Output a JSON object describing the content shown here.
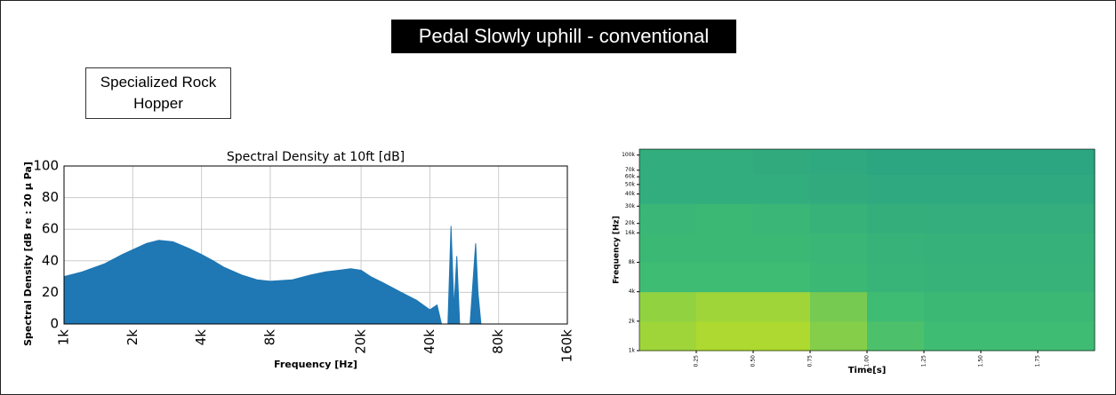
{
  "header": {
    "title": "Pedal Slowly uphill - conventional",
    "note": "Specialized Rock Hopper"
  },
  "chart_data": [
    {
      "type": "area",
      "title": "Spectral Density at 10ft [dB]",
      "x_label": "Frequency [Hz]",
      "y_label": "Spectral Density [dB re : 20 μ Pa]",
      "xscale": "log",
      "grid": true,
      "color": "#1f77b4",
      "xlim": [
        1000,
        160000
      ],
      "ylim": [
        0,
        100
      ],
      "xticks": [
        {
          "value": 1000,
          "label": "1k"
        },
        {
          "value": 2000,
          "label": "2k"
        },
        {
          "value": 4000,
          "label": "4k"
        },
        {
          "value": 8000,
          "label": "8k"
        },
        {
          "value": 20000,
          "label": "20k"
        },
        {
          "value": 40000,
          "label": "40k"
        },
        {
          "value": 80000,
          "label": "80k"
        },
        {
          "value": 160000,
          "label": "160k"
        }
      ],
      "yticks": [
        0,
        20,
        40,
        60,
        80,
        100
      ],
      "x": [
        1000,
        1200,
        1500,
        1800,
        2000,
        2300,
        2600,
        3000,
        3500,
        4000,
        4500,
        5000,
        6000,
        7000,
        8000,
        10000,
        12000,
        14000,
        16000,
        18000,
        20000,
        22000,
        25000,
        30000,
        35000,
        40000,
        43000,
        45000,
        48000,
        49500,
        51000,
        52500,
        54000,
        60000,
        62000,
        63500,
        65000,
        67000,
        160000
      ],
      "values": [
        30,
        33,
        38,
        44,
        47,
        51,
        53,
        52,
        48,
        44,
        40,
        36,
        31,
        28,
        27,
        28,
        31,
        33,
        34,
        35,
        34,
        30,
        26,
        20,
        15,
        9,
        12,
        0,
        0,
        62,
        10,
        43,
        0,
        0,
        30,
        51,
        20,
        0,
        0
      ]
    },
    {
      "type": "heatmap",
      "x_label": "Time[s]",
      "y_label": "Frequency [Hz]",
      "yscale": "log",
      "xlim": [
        0,
        2
      ],
      "ylim": [
        1000,
        115000
      ],
      "xticks": [
        0.25,
        {
          "value": 0.5,
          "label": "0.50"
        },
        0.75,
        {
          "value": 1,
          "label": "1.00"
        },
        1.25,
        {
          "value": 1.5,
          "label": "1.50"
        },
        1.75
      ],
      "yticks": [
        {
          "value": 1000,
          "label": "1k"
        },
        {
          "value": 2000,
          "label": "2k"
        },
        {
          "value": 4000,
          "label": "4k"
        },
        {
          "value": 8000,
          "label": "8k"
        },
        {
          "value": 16000,
          "label": "16k"
        },
        {
          "value": 20000,
          "label": "20k"
        },
        {
          "value": 30000,
          "label": "30k"
        },
        {
          "value": 40000,
          "label": "40k"
        },
        {
          "value": 50000,
          "label": "50k"
        },
        {
          "value": 60000,
          "label": "60k"
        },
        {
          "value": 70000,
          "label": "70k"
        },
        {
          "value": 100000,
          "label": "100k"
        }
      ],
      "x_bins": [
        0,
        0.25,
        0.5,
        0.75,
        1,
        1.25,
        1.5,
        1.75,
        2
      ],
      "y_bins": [
        1000,
        2000,
        4000,
        8000,
        16000,
        32000,
        64000,
        115000
      ],
      "z": [
        [
          0.85,
          0.9,
          0.9,
          0.75,
          0.55,
          0.5,
          0.5,
          0.5
        ],
        [
          0.8,
          0.85,
          0.85,
          0.7,
          0.5,
          0.45,
          0.45,
          0.45
        ],
        [
          0.5,
          0.5,
          0.5,
          0.45,
          0.4,
          0.38,
          0.38,
          0.38
        ],
        [
          0.45,
          0.45,
          0.45,
          0.42,
          0.38,
          0.36,
          0.36,
          0.36
        ],
        [
          0.42,
          0.45,
          0.42,
          0.38,
          0.33,
          0.32,
          0.32,
          0.32
        ],
        [
          0.3,
          0.3,
          0.3,
          0.28,
          0.25,
          0.25,
          0.25,
          0.25
        ],
        [
          0.3,
          0.3,
          0.28,
          0.25,
          0.2,
          0.2,
          0.2,
          0.2
        ]
      ]
    }
  ]
}
